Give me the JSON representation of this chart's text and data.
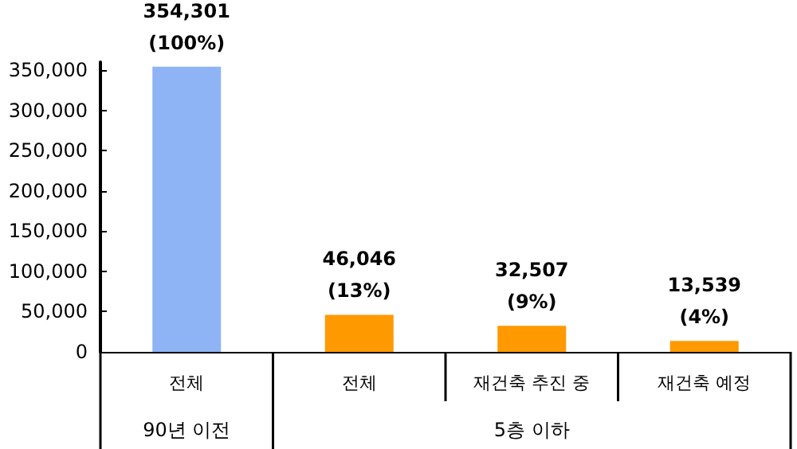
{
  "chart_data": {
    "type": "bar",
    "categories": [
      "전체",
      "전체",
      "재건축 추진 중",
      "재건축 예정"
    ],
    "values": [
      354301,
      46046,
      32507,
      13539
    ],
    "colors": [
      "#8fb4f5",
      "#ff9900",
      "#ff9900",
      "#ff9900"
    ],
    "value_labels": [
      "354,301\n(100%)",
      "46,046\n(13%)",
      "32,507\n(9%)",
      "13,539\n(4%)"
    ],
    "annotations": [
      "90년 이전",
      "5층 이하"
    ],
    "ylim": [
      0,
      360000
    ],
    "yticks": [
      0,
      {
        "value": 50000,
        "label": "50,000"
      },
      {
        "value": 100000,
        "label": "100,000"
      },
      {
        "value": 150000,
        "label": "150,000"
      },
      {
        "value": 200000,
        "label": "200,000"
      },
      {
        "value": 250000,
        "label": "250,000"
      },
      {
        "value": 300000,
        "label": "300,000"
      },
      {
        "value": 350000,
        "label": "350,000"
      }
    ],
    "grid": false
  }
}
